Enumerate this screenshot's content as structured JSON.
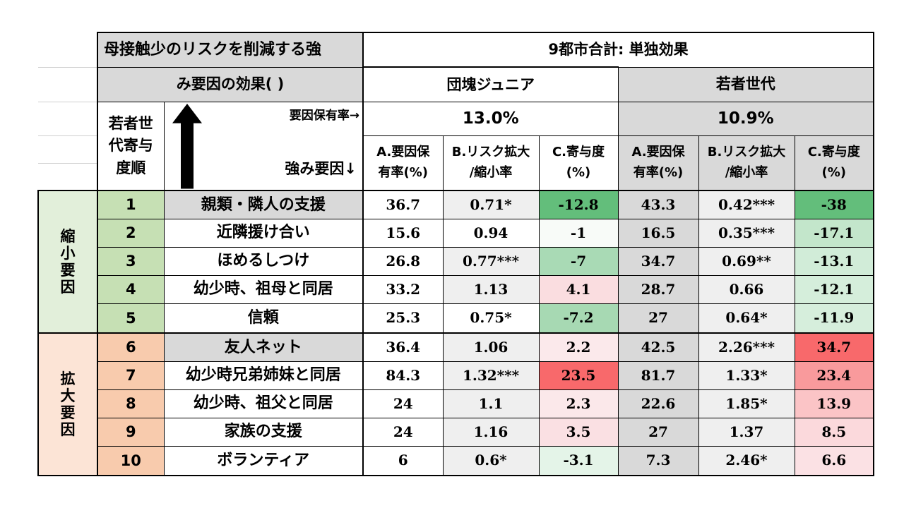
{
  "title_line1": "母接触少のリスクを削減する強",
  "title_line2": "み要因の効果( )",
  "summary_header": "9都市合計: 単独効果",
  "cohorts": [
    {
      "name": "団塊ジュニア",
      "rate": "13.0%"
    },
    {
      "name": "若者世代",
      "rate": "10.9%"
    }
  ],
  "rank_header": [
    "若者世",
    "代寄与",
    "度順"
  ],
  "rate_label": "要因保有率→",
  "strength_label": "強み要因↓",
  "col_headers": {
    "a": [
      "A.要因保",
      "有率(%)"
    ],
    "b": [
      "B.リスク拡大",
      "/縮小率"
    ],
    "c": [
      "C.寄与度",
      "(%)"
    ]
  },
  "groups": [
    {
      "label": [
        "縮",
        "小",
        "要",
        "因"
      ],
      "color": "#e2efda",
      "rank_color": "#c6e0b4"
    },
    {
      "label": [
        "拡",
        "大",
        "要",
        "因"
      ],
      "color": "#fce4d6",
      "rank_color": "#f8cbad"
    }
  ],
  "rows": [
    {
      "rank": "1",
      "factor": "親類・隣人の支援",
      "dj": {
        "a": "36.7",
        "b": "0.71*",
        "c": "-12.8"
      },
      "y": {
        "a": "43.3",
        "b": "0.42***",
        "c": "-38"
      },
      "dj_c_color": "#63be7b",
      "y_c_color": "#63be7b"
    },
    {
      "rank": "2",
      "factor": "近隣援け合い",
      "dj": {
        "a": "15.6",
        "b": "0.94",
        "c": "-1"
      },
      "y": {
        "a": "16.5",
        "b": "0.35***",
        "c": "-17.1"
      },
      "dj_c_color": "#f8fbf8",
      "y_c_color": "#c3e6cb"
    },
    {
      "rank": "3",
      "factor": "ほめるしつけ",
      "dj": {
        "a": "26.8",
        "b": "0.77***",
        "c": "-7"
      },
      "y": {
        "a": "34.7",
        "b": "0.69**",
        "c": "-13.1"
      },
      "dj_c_color": "#a9dab5",
      "y_c_color": "#d1ecd8"
    },
    {
      "rank": "4",
      "factor": "幼少時、祖母と同居",
      "dj": {
        "a": "33.2",
        "b": "1.13",
        "c": "4.1"
      },
      "y": {
        "a": "28.7",
        "b": "0.66",
        "c": "-12.1"
      },
      "dj_c_color": "#fadde0",
      "y_c_color": "#d5eedb"
    },
    {
      "rank": "5",
      "factor": "信頼",
      "dj": {
        "a": "25.3",
        "b": "0.75*",
        "c": "-7.2"
      },
      "y": {
        "a": "27",
        "b": "0.64*",
        "c": "-11.9"
      },
      "dj_c_color": "#a7d9b3",
      "y_c_color": "#d6eedc"
    },
    {
      "rank": "6",
      "factor": "友人ネット",
      "dj": {
        "a": "36.4",
        "b": "1.06",
        "c": "2.2"
      },
      "y": {
        "a": "42.5",
        "b": "2.26***",
        "c": "34.7"
      },
      "dj_c_color": "#fbe9eb",
      "y_c_color": "#f8696b"
    },
    {
      "rank": "7",
      "factor": "幼少時兄弟姉妹と同居",
      "dj": {
        "a": "84.3",
        "b": "1.32***",
        "c": "23.5"
      },
      "y": {
        "a": "81.7",
        "b": "1.33*",
        "c": "23.4"
      },
      "dj_c_color": "#f8696b",
      "y_c_color": "#f99a9c"
    },
    {
      "rank": "8",
      "factor": "幼少時、祖父と同居",
      "dj": {
        "a": "24",
        "b": "1.1",
        "c": "2.3"
      },
      "y": {
        "a": "22.6",
        "b": "1.85*",
        "c": "13.9"
      },
      "dj_c_color": "#fbe8ea",
      "y_c_color": "#fbc4c6"
    },
    {
      "rank": "9",
      "factor": "家族の支援",
      "dj": {
        "a": "24",
        "b": "1.16",
        "c": "3.5"
      },
      "y": {
        "a": "27",
        "b": "1.37",
        "c": "8.5"
      },
      "dj_c_color": "#fae0e3",
      "y_c_color": "#fbd9dc"
    },
    {
      "rank": "10",
      "factor": "ボランティア",
      "dj": {
        "a": "6",
        "b": "0.6*",
        "c": "-3.1"
      },
      "y": {
        "a": "7.3",
        "b": "2.46*",
        "c": "6.6"
      },
      "dj_c_color": "#e4f4e8",
      "y_c_color": "#fbe1e4"
    }
  ],
  "colors": {
    "header_gray": "#d9d9d9",
    "cell_light_gray": "#efefef",
    "border": "#000000"
  }
}
